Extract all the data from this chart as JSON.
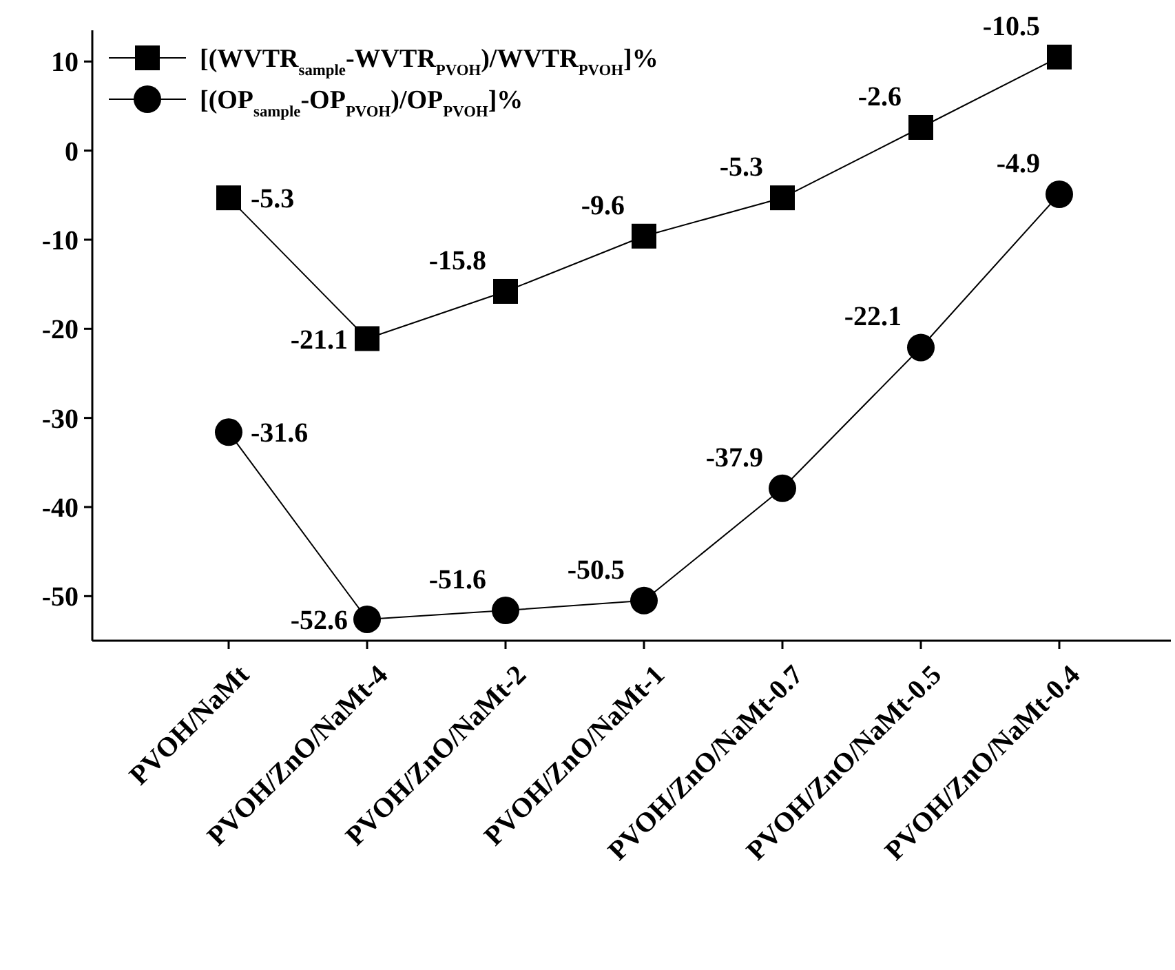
{
  "chart_data": {
    "type": "line",
    "categories": [
      "PVOH/NaMt",
      "PVOH/ZnO/NaMt-4",
      "PVOH/ZnO/NaMt-2",
      "PVOH/ZnO/NaMt-1",
      "PVOH/ZnO/NaMt-0.7",
      "PVOH/ZnO/NaMt-0.5",
      "PVOH/ZnO/NaMt-0.4"
    ],
    "series": [
      {
        "name": "[(WVTR$_{sample}$-WVTR$_{PVOH}$)/WVTR$_{PVOH}$]%",
        "color": "#000000",
        "marker": "square",
        "values": [
          -5.3,
          -21.1,
          -15.8,
          -9.6,
          -5.3,
          2.6,
          10.5
        ],
        "value_labels": [
          "-5.3",
          "-21.1",
          "-15.8",
          "-9.6",
          "-5.3",
          null,
          null
        ]
      },
      {
        "name": "[(OP$_{sample}$-OP$_{PVOH}$)/OP$_{PVOH}$]%",
        "color": "#000000",
        "marker": "circle",
        "values": [
          -31.6,
          -52.6,
          -51.6,
          -50.5,
          -37.9,
          -22.1,
          -4.9
        ],
        "value_labels": [
          "-31.6",
          "-52.6",
          "-51.6",
          "-50.5",
          "-37.9",
          "-22.1",
          "-4.9"
        ]
      }
    ],
    "annotations": [
      {
        "text": "-2.6",
        "x": "PVOH/ZnO/NaMt-0.5",
        "y": 2.6
      },
      {
        "text": "-10.5",
        "x": "PVOH/ZnO/NaMt-0.4",
        "y": 10.5
      }
    ],
    "ylim": [
      -55,
      13.5
    ],
    "yticks": [
      -50,
      -40,
      -30,
      -20,
      -10,
      0,
      10
    ],
    "grid": false,
    "legend": "top left",
    "line_style": "solid"
  }
}
